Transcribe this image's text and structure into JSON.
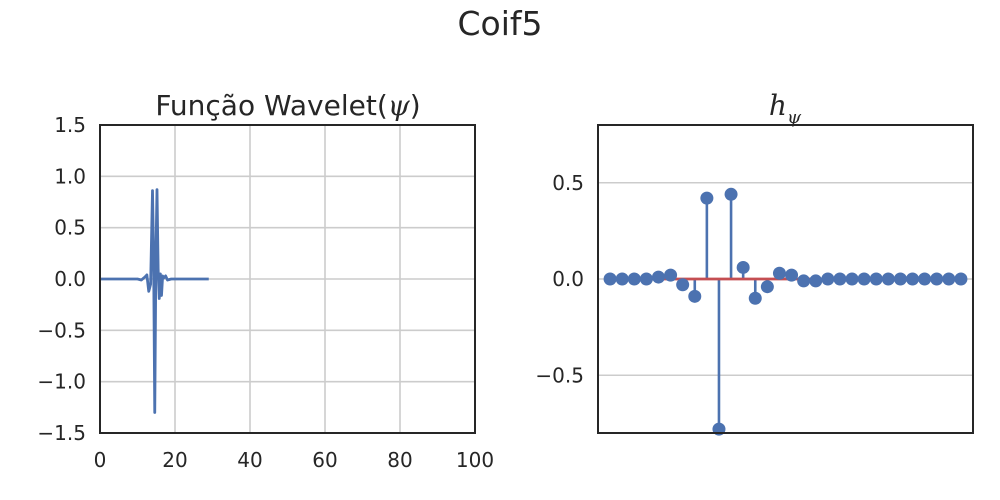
{
  "figure": {
    "title": "Coif5"
  },
  "colors": {
    "line": "#4c72b0",
    "baseline": "#c44e52",
    "grid": "#cccccc",
    "axis": "#262626"
  },
  "chart_data": [
    {
      "type": "line",
      "title_text": "Função Wavelet(",
      "title_symbol": "ψ",
      "title_suffix": ")",
      "xlim": [
        0,
        100
      ],
      "ylim": [
        -1.5,
        1.5
      ],
      "xticks": [
        0,
        20,
        40,
        60,
        80,
        100
      ],
      "yticks": [
        -1.5,
        -1.0,
        -0.5,
        0.0,
        0.5,
        1.0,
        1.5
      ],
      "xtick_labels": [
        "0",
        "20",
        "40",
        "60",
        "80",
        "100"
      ],
      "ytick_labels": [
        "−1.5",
        "−1.0",
        "−0.5",
        "0.0",
        "0.5",
        "1.0",
        "1.5"
      ],
      "grid": true,
      "series": [
        {
          "x": [
            0,
            5,
            10,
            11,
            12,
            12.5,
            13,
            13.5,
            14,
            14.3,
            14.6,
            14.9,
            15.2,
            15.5,
            15.8,
            16.1,
            16.4,
            16.7,
            17,
            17.5,
            18,
            19,
            20,
            25,
            29
          ],
          "y": [
            0,
            0,
            0,
            -0.01,
            0.02,
            0.04,
            -0.12,
            -0.05,
            0.86,
            0.2,
            -1.3,
            0.2,
            0.87,
            0.1,
            -0.19,
            0.05,
            -0.16,
            0.03,
            0.01,
            0.03,
            -0.01,
            0,
            0,
            0,
            0
          ]
        }
      ]
    },
    {
      "type": "stem",
      "title_base": "h",
      "title_sub": "ψ",
      "xlim": [
        -1,
        30
      ],
      "ylim": [
        -0.8,
        0.8
      ],
      "yticks": [
        -0.5,
        0.0,
        0.5
      ],
      "ytick_labels": [
        "−0.5",
        "0.0",
        "0.5"
      ],
      "grid_axis": "y",
      "values": [
        0.0,
        0.0,
        0.0,
        0.0,
        0.01,
        0.02,
        -0.03,
        -0.09,
        0.42,
        -0.78,
        0.44,
        0.06,
        -0.1,
        -0.04,
        0.03,
        0.02,
        -0.01,
        -0.01,
        0.0,
        0.0,
        0.0,
        0.0,
        0.0,
        0.0,
        0.0,
        0.0,
        0.0,
        0.0,
        0.0,
        0.0
      ]
    }
  ]
}
